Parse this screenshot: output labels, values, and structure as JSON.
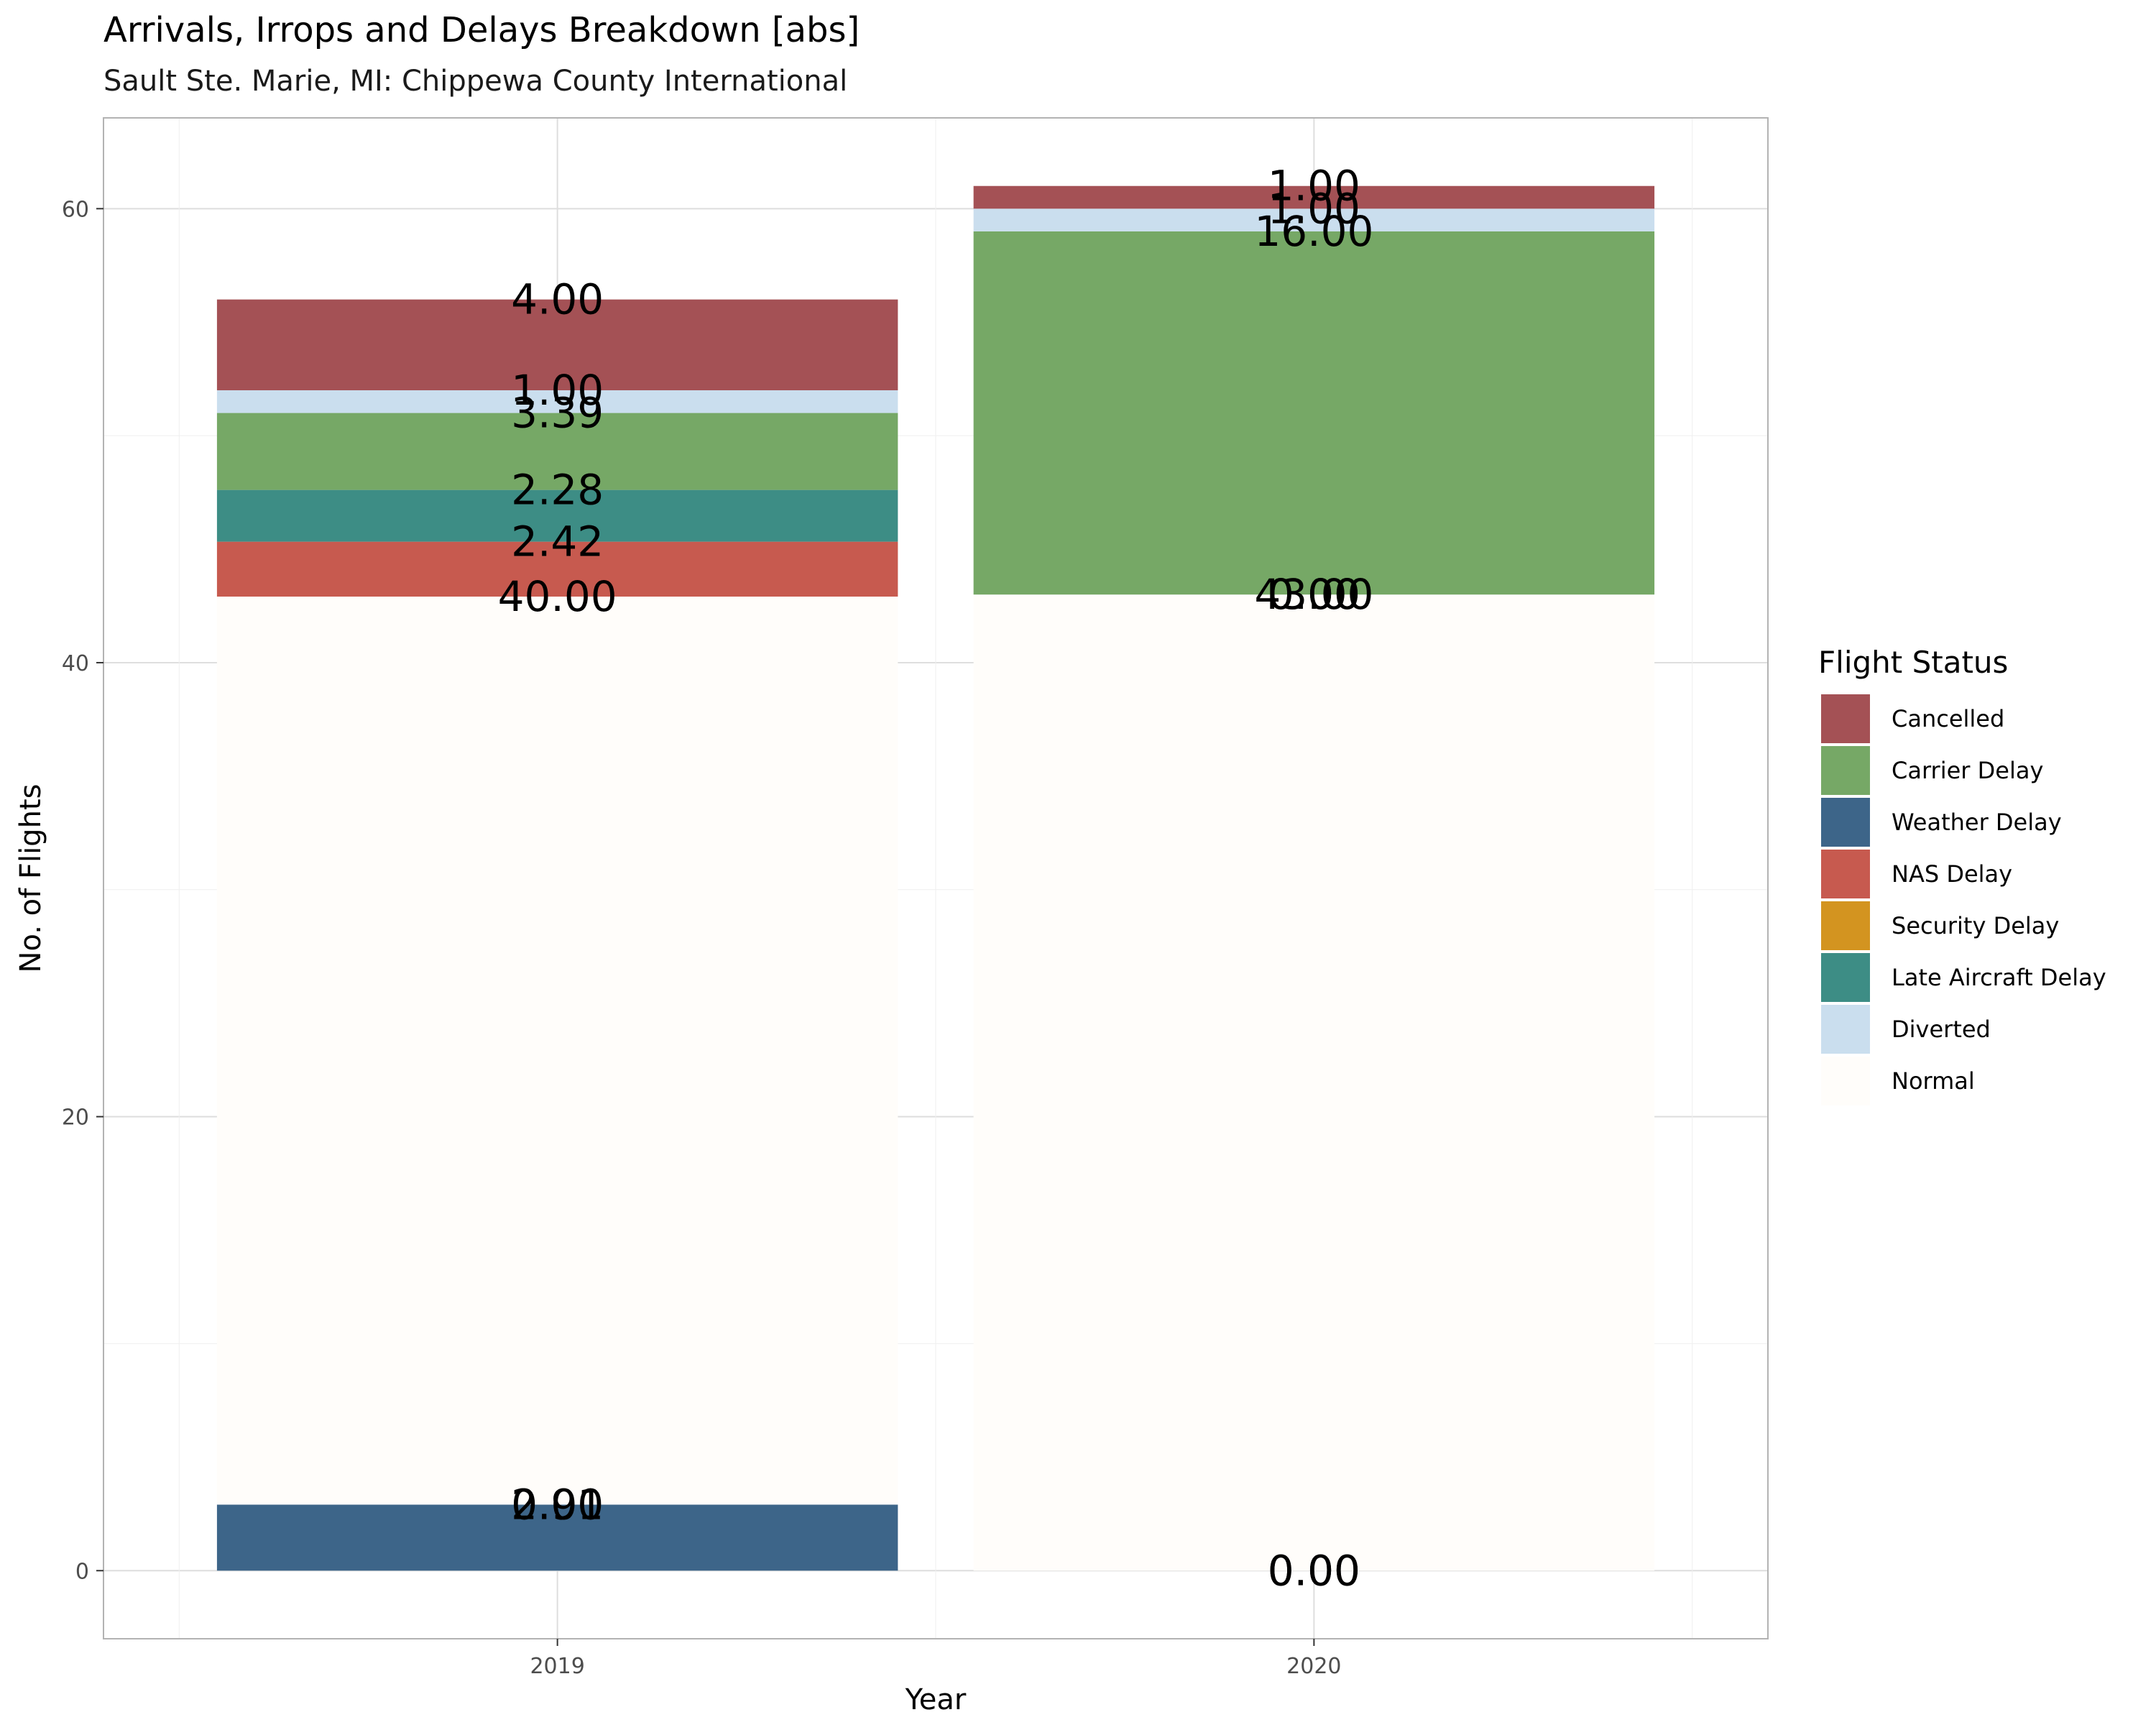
{
  "chart_data": {
    "type": "bar",
    "stacked": true,
    "title": "Arrivals, Irrops and Delays Breakdown [abs]",
    "subtitle": "Sault Ste. Marie, MI: Chippewa County International",
    "xlabel": "Year",
    "ylabel": "No. of Flights",
    "categories": [
      "2019",
      "2020"
    ],
    "ylim": [
      -3,
      64
    ],
    "yticks": [
      0,
      20,
      40,
      60
    ],
    "grid": true,
    "legend": {
      "title": "Flight Status",
      "position": "right"
    },
    "stack_order": [
      "Weather Delay",
      "Security Delay",
      "Normal",
      "NAS Delay",
      "Late Aircraft Delay",
      "Carrier Delay",
      "Diverted",
      "Cancelled"
    ],
    "series": [
      {
        "name": "Cancelled",
        "color": "#a45155",
        "values": [
          4.0,
          1.0
        ],
        "labels": [
          "4.00",
          "1.00"
        ]
      },
      {
        "name": "Carrier Delay",
        "color": "#76a866",
        "values": [
          3.39,
          16.0
        ],
        "labels": [
          "3.39",
          "16.00"
        ]
      },
      {
        "name": "Weather Delay",
        "color": "#3d6589",
        "values": [
          2.91,
          0.0
        ],
        "labels": [
          "2.91",
          "0.00"
        ]
      },
      {
        "name": "NAS Delay",
        "color": "#c75a4f",
        "values": [
          2.42,
          0.0
        ],
        "labels": [
          "2.42",
          "0.00"
        ]
      },
      {
        "name": "Security Delay",
        "color": "#d39420",
        "values": [
          0.0,
          0.0
        ],
        "labels": [
          "0.00",
          "0.00"
        ]
      },
      {
        "name": "Late Aircraft Delay",
        "color": "#3d8d85",
        "values": [
          2.28,
          0.0
        ],
        "labels": [
          "2.28",
          "0.00"
        ]
      },
      {
        "name": "Diverted",
        "color": "#cadeee",
        "values": [
          1.0,
          1.0
        ],
        "labels": [
          "1.00",
          "1.00"
        ]
      },
      {
        "name": "Normal",
        "color": "#fffdfa",
        "values": [
          40.0,
          43.0
        ],
        "labels": [
          "40.00",
          "43.00"
        ]
      }
    ]
  }
}
